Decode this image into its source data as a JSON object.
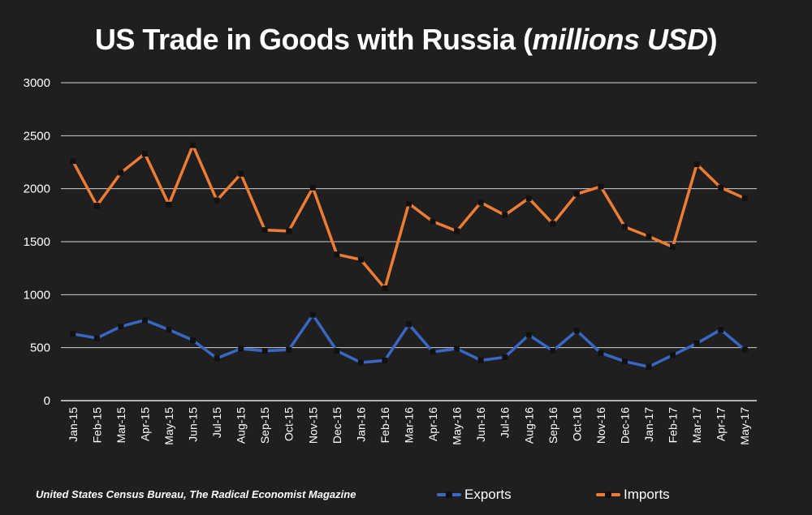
{
  "title": "US Trade in Goods with Russia",
  "title_unit": "millions USD",
  "source": "United States Census Bureau, The Radical Economist Magazine",
  "colors": {
    "background": "#1f1f1f",
    "grid": "#d0d0d0",
    "exports": "#3a67c4",
    "imports": "#ef7c34",
    "marker": "#111111"
  },
  "chart_data": {
    "type": "line",
    "categories": [
      "Jan-15",
      "Feb-15",
      "Mar-15",
      "Apr-15",
      "May-15",
      "Jun-15",
      "Jul-15",
      "Aug-15",
      "Sep-15",
      "Oct-15",
      "Nov-15",
      "Dec-15",
      "Jan-16",
      "Feb-16",
      "Mar-16",
      "Apr-16",
      "May-16",
      "Jun-16",
      "Jul-16",
      "Aug-16",
      "Sep-16",
      "Oct-16",
      "Nov-16",
      "Dec-16",
      "Jan-17",
      "Feb-17",
      "Mar-17",
      "Apr-17",
      "May-17"
    ],
    "series": [
      {
        "name": "Exports",
        "values": [
          630,
          590,
          700,
          760,
          670,
          570,
          400,
          490,
          470,
          480,
          810,
          470,
          360,
          380,
          720,
          460,
          490,
          380,
          410,
          620,
          470,
          660,
          450,
          370,
          320,
          430,
          540,
          670,
          480
        ]
      },
      {
        "name": "Imports",
        "values": [
          2260,
          1840,
          2150,
          2330,
          1850,
          2410,
          1890,
          2140,
          1610,
          1600,
          2010,
          1380,
          1330,
          1060,
          1860,
          1690,
          1600,
          1870,
          1750,
          1910,
          1670,
          1950,
          2020,
          1640,
          1550,
          1450,
          2230,
          2010,
          1910
        ]
      }
    ],
    "yticks": [
      0,
      500,
      1000,
      1500,
      2000,
      2500,
      3000
    ],
    "ylim": [
      0,
      3000
    ],
    "grid": true,
    "legend_position": "bottom",
    "xlabel": "",
    "ylabel": ""
  }
}
